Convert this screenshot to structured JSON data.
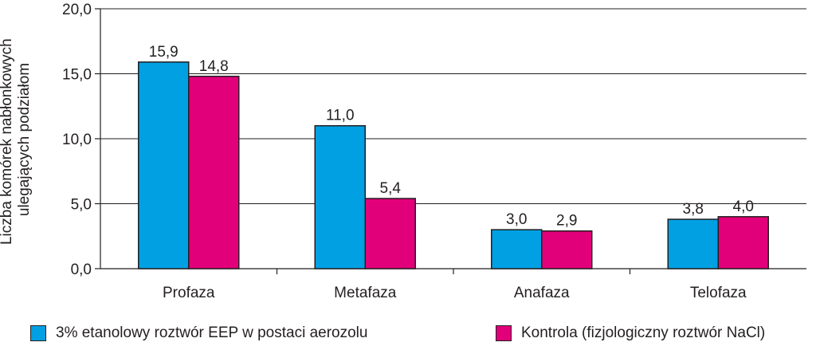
{
  "chart_data": {
    "type": "bar",
    "categories": [
      "Profaza",
      "Metafaza",
      "Anafaza",
      "Telofaza"
    ],
    "series": [
      {
        "name": "3% etanolowy roztwór EEP w postaci aerozolu",
        "color": "#00a0e3",
        "values": [
          15.9,
          11.0,
          3.0,
          3.8
        ],
        "labels": [
          "15,9",
          "11,0",
          "3,0",
          "3,8"
        ]
      },
      {
        "name": "Kontrola (fizjologiczny roztwór NaCl)",
        "color": "#e2007a",
        "values": [
          14.8,
          5.4,
          2.9,
          4.0
        ],
        "labels": [
          "14,8",
          "5,4",
          "2,9",
          "4,0"
        ]
      }
    ],
    "ylim": [
      0,
      20
    ],
    "yticks": [
      0,
      5,
      10,
      15,
      20
    ],
    "ytick_labels": [
      "0,0",
      "5,0",
      "10,0",
      "15,0",
      "20,0"
    ],
    "ylabel_lines": [
      "Liczba komórek nabłonkowych",
      "ulegających podziałom"
    ],
    "xlabel": "",
    "title": "",
    "grid": true,
    "legend_position": "bottom"
  }
}
